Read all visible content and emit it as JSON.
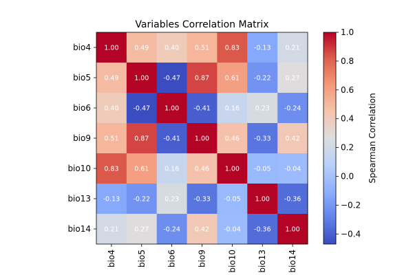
{
  "chart_data": {
    "type": "heatmap",
    "title": "Variables Correlation Matrix",
    "x_categories": [
      "bio4",
      "bio5",
      "bio6",
      "bio9",
      "bio10",
      "bio13",
      "bio14"
    ],
    "y_categories": [
      "bio4",
      "bio5",
      "bio6",
      "bio9",
      "bio10",
      "bio13",
      "bio14"
    ],
    "values": [
      [
        1.0,
        0.49,
        0.4,
        0.51,
        0.83,
        -0.13,
        0.21
      ],
      [
        0.49,
        1.0,
        -0.47,
        0.87,
        0.61,
        -0.22,
        0.27
      ],
      [
        0.4,
        -0.47,
        1.0,
        -0.41,
        0.16,
        0.23,
        -0.24
      ],
      [
        0.51,
        0.87,
        -0.41,
        1.0,
        0.46,
        -0.33,
        0.42
      ],
      [
        0.83,
        0.61,
        0.16,
        0.46,
        1.0,
        -0.05,
        -0.04
      ],
      [
        -0.13,
        -0.22,
        0.23,
        -0.33,
        -0.05,
        1.0,
        -0.36
      ],
      [
        0.21,
        0.27,
        -0.24,
        0.42,
        -0.04,
        -0.36,
        1.0
      ]
    ],
    "value_labels": [
      [
        "1.00",
        "0.49",
        "0.40",
        "0.51",
        "0.83",
        "-0.13",
        "0.21"
      ],
      [
        "0.49",
        "1.00",
        "-0.47",
        "0.87",
        "0.61",
        "-0.22",
        "0.27"
      ],
      [
        "0.40",
        "-0.47",
        "1.00",
        "-0.41",
        "0.16",
        "0.23",
        "-0.24"
      ],
      [
        "0.51",
        "0.87",
        "-0.41",
        "1.00",
        "0.46",
        "-0.33",
        "0.42"
      ],
      [
        "0.83",
        "0.61",
        "0.16",
        "0.46",
        "1.00",
        "-0.05",
        "-0.04"
      ],
      [
        "-0.13",
        "-0.22",
        "0.23",
        "-0.33",
        "-0.05",
        "1.00",
        "-0.36"
      ],
      [
        "0.21",
        "0.27",
        "-0.24",
        "0.42",
        "-0.04",
        "-0.36",
        "1.00"
      ]
    ],
    "colormap": "coolwarm",
    "colorbar": {
      "label": "Spearman Correlation",
      "range": [
        -0.47,
        1.0
      ],
      "ticks": [
        -0.4,
        -0.2,
        0.0,
        0.2,
        0.4,
        0.6,
        0.8,
        1.0
      ],
      "tick_labels": [
        "−0.4",
        "−0.2",
        "0.0",
        "0.2",
        "0.4",
        "0.6",
        "0.8",
        "1.0"
      ]
    },
    "grid": false
  }
}
